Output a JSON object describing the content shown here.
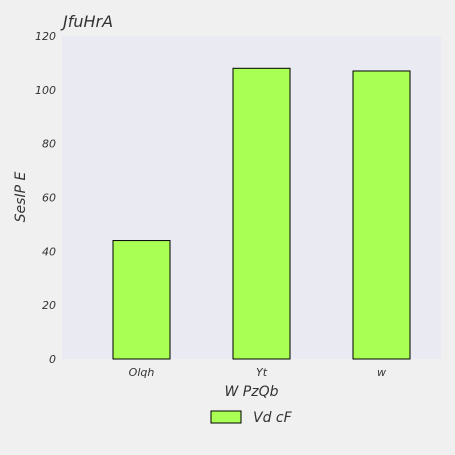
{
  "chart_data": {
    "type": "bar",
    "title": "JfuHrA",
    "xlabel": "W PzQb",
    "ylabel": "SesIP E",
    "categories": [
      "Olqh",
      "Yt",
      "w"
    ],
    "series": [
      {
        "name": "Vd cF",
        "values": [
          44,
          108,
          107
        ]
      }
    ],
    "ylim": [
      0,
      120
    ],
    "yticks": [
      0,
      20,
      40,
      60,
      80,
      100,
      120
    ],
    "grid": false,
    "legend": "bottom-center",
    "colors": {
      "bar": "#aaff55",
      "bar_edge": "#000000",
      "plot_bg": "#eaeaf2",
      "figure_bg": "#f0f0f0",
      "text": "#333333"
    }
  }
}
